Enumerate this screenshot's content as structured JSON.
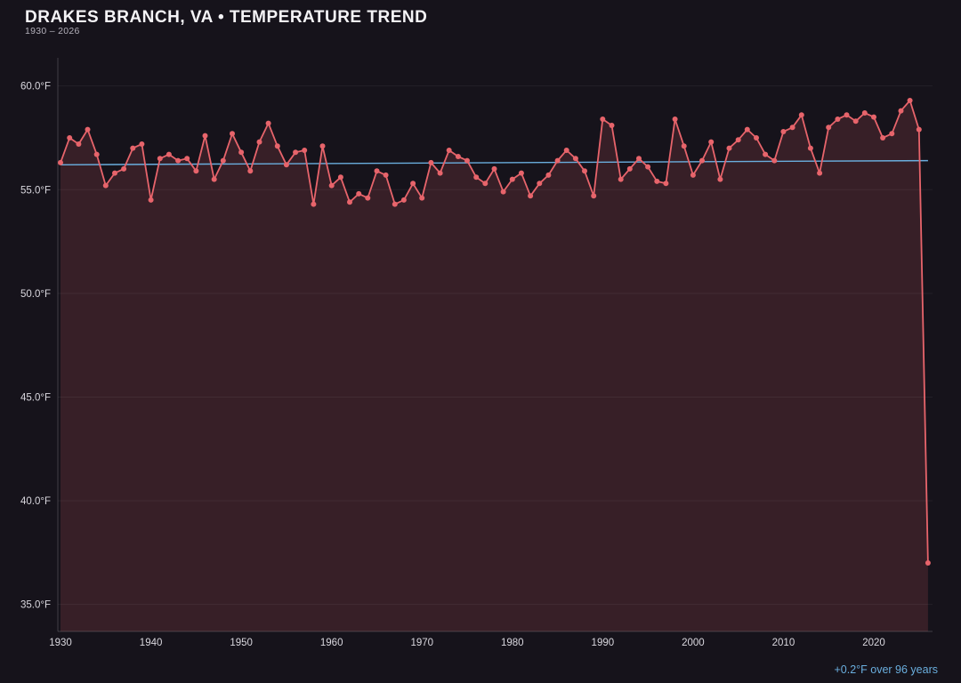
{
  "header": {
    "title": "DRAKES BRANCH, VA • TEMPERATURE TREND",
    "subtitle": "1930 – 2026"
  },
  "annotation": {
    "trend_label": "+0.2°F over 96 years"
  },
  "colors": {
    "background": "#16131b",
    "series_line": "#e7646b",
    "series_fill": "rgba(231,100,107,0.16)",
    "trend_line": "#6aaede",
    "grid": "rgba(255,255,255,0.06)",
    "axis": "rgba(255,255,255,0.18)",
    "tick_text": "#d9d7de",
    "title_text": "#f4f3f6",
    "annotation_text": "#6aaede"
  },
  "chart_data": {
    "type": "line",
    "title": "DRAKES BRANCH, VA • TEMPERATURE TREND",
    "subtitle": "1930 – 2026",
    "xlabel": "",
    "ylabel": "",
    "legend": "none",
    "grid": "horizontal-faint",
    "x_start_year": 1930,
    "x_end_year": 2026,
    "values": [
      56.3,
      57.5,
      57.2,
      57.9,
      56.7,
      55.2,
      55.8,
      56.0,
      57.0,
      57.2,
      54.5,
      56.5,
      56.7,
      56.4,
      56.5,
      55.9,
      57.6,
      55.5,
      56.4,
      57.7,
      56.8,
      55.9,
      57.3,
      58.2,
      57.1,
      56.2,
      56.8,
      56.9,
      54.3,
      57.1,
      55.2,
      55.6,
      54.4,
      54.8,
      54.6,
      55.9,
      55.7,
      54.3,
      54.5,
      55.3,
      54.6,
      56.3,
      55.8,
      56.9,
      56.6,
      56.4,
      55.6,
      55.3,
      56.0,
      54.9,
      55.5,
      55.8,
      54.7,
      55.3,
      55.7,
      56.4,
      56.9,
      56.5,
      55.9,
      54.7,
      58.4,
      58.1,
      55.5,
      56.0,
      56.5,
      56.1,
      55.4,
      55.3,
      58.4,
      57.1,
      55.7,
      56.4,
      57.3,
      55.5,
      57.0,
      57.4,
      57.9,
      57.5,
      56.7,
      56.4,
      57.8,
      58.0,
      58.6,
      57.0,
      55.8,
      58.0,
      58.4,
      58.6,
      58.3,
      58.7,
      58.5,
      57.5,
      57.7,
      58.8,
      59.3,
      57.9,
      37.0
    ],
    "trend": {
      "start_value": 56.2,
      "end_value": 56.4,
      "label": "+0.2°F over 96 years"
    },
    "yticks": [
      35,
      40,
      45,
      50,
      55,
      60
    ],
    "ytick_labels": [
      "35.0°F",
      "40.0°F",
      "45.0°F",
      "50.0°F",
      "55.0°F",
      "60.0°F"
    ],
    "xticks": [
      1930,
      1940,
      1950,
      1960,
      1970,
      1980,
      1990,
      2000,
      2010,
      2020
    ],
    "ylim": [
      33.7,
      60.5
    ],
    "xlim": [
      1929.7,
      2026.5
    ]
  }
}
